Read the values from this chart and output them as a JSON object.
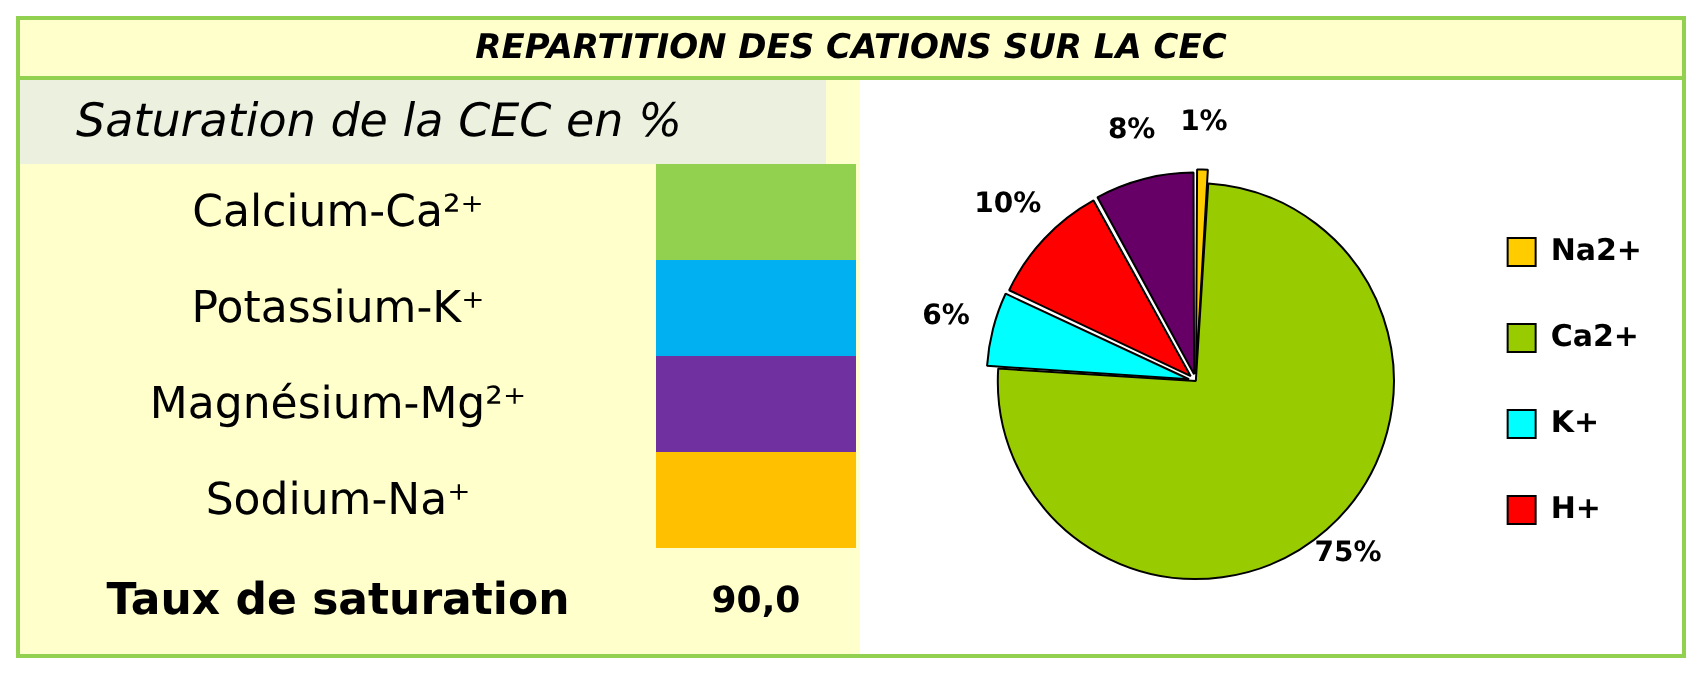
{
  "chart_data": {
    "type": "pie",
    "title": "REPARTITION DES CATIONS SUR LA CEC",
    "categories": [
      "Na2+",
      "Ca2+",
      "K+",
      "H+",
      null
    ],
    "values": [
      1,
      75,
      6,
      10,
      8
    ],
    "colors": [
      "#ffcc00",
      "#99cc00",
      "#00ffff",
      "#ff0000",
      "#660066"
    ],
    "value_labels": [
      "1%",
      "75%",
      "6%",
      "10%",
      "8%"
    ],
    "legend": "right",
    "annotations": [
      "Saturation de la CEC en %",
      "Calcium-Ca²⁺",
      "Potassium-K⁺",
      "Magnésium-Mg²⁺",
      "Sodium-Na⁺",
      "Taux de saturation",
      "90,0"
    ]
  }
}
